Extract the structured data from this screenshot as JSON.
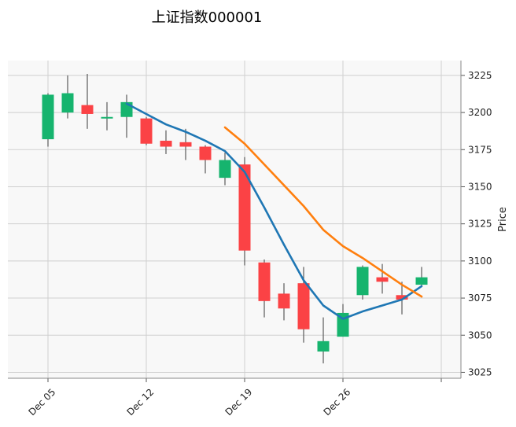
{
  "chart_data": {
    "type": "candlestick",
    "title": "上证指数000001",
    "ylabel": "Price",
    "ylim": [
      3021,
      3235
    ],
    "grid": true,
    "colors": {
      "up": "#16b46e",
      "down": "#fb4245",
      "ma_short": "#1f77b4",
      "ma_long": "#ff7f0e",
      "wick": "#5a5a5a"
    },
    "x_ticks": [
      {
        "index": 0,
        "label": "Dec 05"
      },
      {
        "index": 5,
        "label": "Dec 12"
      },
      {
        "index": 10,
        "label": "Dec 19"
      },
      {
        "index": 15,
        "label": "Dec 26"
      },
      {
        "index": 20,
        "label": ""
      }
    ],
    "y_ticks": [
      3025,
      3050,
      3075,
      3100,
      3125,
      3150,
      3175,
      3200,
      3225
    ],
    "candles": [
      {
        "open": 3182,
        "high": 3213,
        "low": 3177,
        "close": 3212
      },
      {
        "open": 3200,
        "high": 3225,
        "low": 3196,
        "close": 3213
      },
      {
        "open": 3205,
        "high": 3226,
        "low": 3189,
        "close": 3199
      },
      {
        "open": 3196,
        "high": 3207,
        "low": 3188,
        "close": 3197
      },
      {
        "open": 3197,
        "high": 3212,
        "low": 3183,
        "close": 3207
      },
      {
        "open": 3196,
        "high": 3197,
        "low": 3178,
        "close": 3179
      },
      {
        "open": 3181,
        "high": 3188,
        "low": 3172,
        "close": 3177
      },
      {
        "open": 3180,
        "high": 3189,
        "low": 3168,
        "close": 3177
      },
      {
        "open": 3177,
        "high": 3178,
        "low": 3159,
        "close": 3168
      },
      {
        "open": 3156,
        "high": 3173,
        "low": 3151,
        "close": 3168
      },
      {
        "open": 3165,
        "high": 3170,
        "low": 3097,
        "close": 3107
      },
      {
        "open": 3099,
        "high": 3101,
        "low": 3062,
        "close": 3073
      },
      {
        "open": 3078,
        "high": 3085,
        "low": 3060,
        "close": 3068
      },
      {
        "open": 3085,
        "high": 3096,
        "low": 3045,
        "close": 3054
      },
      {
        "open": 3039,
        "high": 3062,
        "low": 3031,
        "close": 3046
      },
      {
        "open": 3049,
        "high": 3071,
        "low": 3049,
        "close": 3065
      },
      {
        "open": 3077,
        "high": 3097,
        "low": 3074,
        "close": 3096
      },
      {
        "open": 3089,
        "high": 3098,
        "low": 3078,
        "close": 3086
      },
      {
        "open": 3077,
        "high": 3086,
        "low": 3064,
        "close": 3074
      },
      {
        "open": 3084,
        "high": 3096,
        "low": 3083,
        "close": 3089
      }
    ],
    "series": [
      {
        "type": "line",
        "start_index": 4,
        "values": [
          3206,
          3199,
          3192,
          3187,
          3181,
          3174,
          3160,
          3136,
          3111,
          3087,
          3070,
          3061,
          3066,
          3070,
          3074,
          3083
        ]
      },
      {
        "type": "line",
        "start_index": 9,
        "values": [
          3190,
          3179,
          3165,
          3151,
          3137,
          3121,
          3110,
          3102,
          3093,
          3084,
          3076
        ]
      }
    ]
  }
}
